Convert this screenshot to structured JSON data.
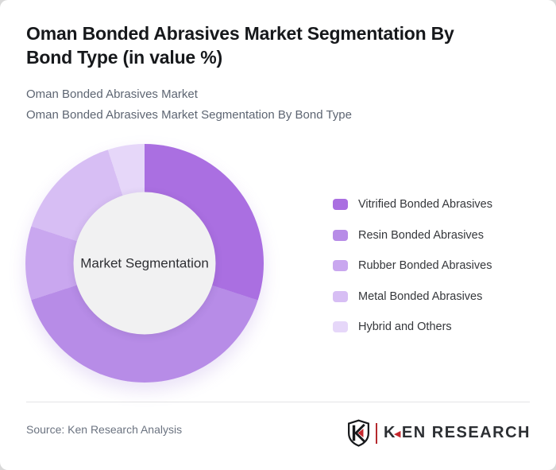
{
  "header": {
    "title": "Oman Bonded Abrasives Market Segmentation By Bond Type (in value %)",
    "title_lines": [
      "Oman Bonded Abrasives Market Segmentation By",
      "Bond Type (in value %)"
    ],
    "subtitle_lines": [
      "Oman Bonded Abrasives Market",
      "Oman Bonded Abrasives Market Segmentation By Bond Type"
    ]
  },
  "chart_data": {
    "type": "pie",
    "subtype": "donut",
    "title": "Oman Bonded Abrasives Market Segmentation By Bond Type (in value %)",
    "categories": [
      "Vitrified Bonded Abrasives",
      "Resin Bonded Abrasives",
      "Rubber Bonded Abrasives",
      "Metal Bonded Abrasives",
      "Hybrid and Others"
    ],
    "values": [
      30,
      40,
      10,
      15,
      5
    ],
    "unit": "%",
    "colors": [
      "#aa6fe1",
      "#b78ce7",
      "#c9a7ef",
      "#d7bef4",
      "#e6d7f9"
    ],
    "center_label": "Market Segmentation",
    "start_angle_deg": 0,
    "direction": "clockwise",
    "legend_position": "right",
    "hole_fill": "#f1f1f2"
  },
  "footer": {
    "source": "Source: Ken Research Analysis",
    "logo": {
      "brand": "KEN RESEARCH",
      "brand_first_letter": "K",
      "brand_rest": "EN RESEARCH",
      "accent_color": "#c5282e",
      "text_color": "#2c2f33"
    }
  }
}
